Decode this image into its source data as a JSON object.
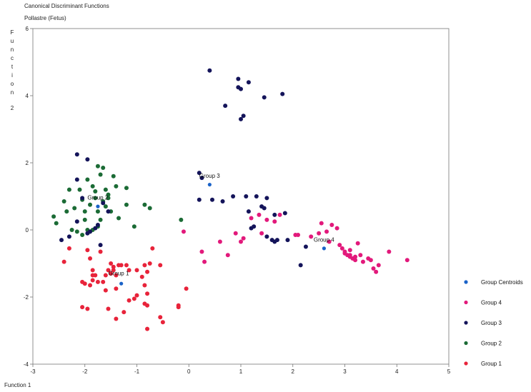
{
  "chart_data": {
    "type": "scatter",
    "title": "Canonical Discriminant Functions",
    "subtitle": "Pollastre (Fetus)",
    "xlabel": "Function 1",
    "ylabel_letters": [
      "F",
      "u",
      "n",
      "c",
      "t",
      "i",
      "o",
      "n"
    ],
    "ylabel_number": "2",
    "xlim": [
      -3,
      5
    ],
    "ylim": [
      -4,
      6
    ],
    "xticks": [
      -3,
      -2,
      -1,
      0,
      1,
      2,
      3,
      4,
      5
    ],
    "yticks": [
      -4,
      -2,
      0,
      2,
      4,
      6
    ],
    "grid": false,
    "legend_position": "right",
    "annotations": [
      {
        "text": "Group 1",
        "x": -1.55,
        "y": -1.35
      },
      {
        "text": "Group 2",
        "x": -1.95,
        "y": 0.9
      },
      {
        "text": "Group 3",
        "x": 0.2,
        "y": 1.55
      },
      {
        "text": "Group 4",
        "x": 2.4,
        "y": -0.35
      }
    ],
    "series": [
      {
        "name": "Group 1",
        "color": "#e8233a",
        "points": [
          [
            -2.4,
            -0.95
          ],
          [
            -1.95,
            -0.6
          ],
          [
            -1.7,
            -0.65
          ],
          [
            -2.3,
            -0.55
          ],
          [
            -1.9,
            -0.85
          ],
          [
            -1.85,
            -1.2
          ],
          [
            -1.85,
            -1.35
          ],
          [
            -1.8,
            -1.35
          ],
          [
            -1.85,
            -1.5
          ],
          [
            -1.9,
            -1.65
          ],
          [
            -1.75,
            -1.55
          ],
          [
            -2.0,
            -1.6
          ],
          [
            -2.05,
            -1.55
          ],
          [
            -1.5,
            -1.0
          ],
          [
            -1.45,
            -1.1
          ],
          [
            -1.35,
            -1.05
          ],
          [
            -1.3,
            -1.05
          ],
          [
            -1.4,
            -1.35
          ],
          [
            -1.55,
            -1.2
          ],
          [
            -1.5,
            -1.3
          ],
          [
            -1.45,
            -1.2
          ],
          [
            -1.6,
            -1.35
          ],
          [
            -1.65,
            -1.55
          ],
          [
            -1.6,
            -1.8
          ],
          [
            -1.4,
            -1.75
          ],
          [
            -1.2,
            -1.05
          ],
          [
            -1.15,
            -1.2
          ],
          [
            -1.0,
            -1.2
          ],
          [
            -0.85,
            -1.05
          ],
          [
            -0.8,
            -1.25
          ],
          [
            -0.75,
            -1.0
          ],
          [
            -0.7,
            -0.55
          ],
          [
            -0.55,
            -1.05
          ],
          [
            -0.9,
            -1.4
          ],
          [
            -0.85,
            -1.65
          ],
          [
            -0.8,
            -1.9
          ],
          [
            -1.0,
            -1.95
          ],
          [
            -1.05,
            -2.05
          ],
          [
            -1.15,
            -2.1
          ],
          [
            -1.25,
            -2.45
          ],
          [
            -1.4,
            -2.65
          ],
          [
            -2.05,
            -2.3
          ],
          [
            -1.95,
            -2.35
          ],
          [
            -1.55,
            -2.35
          ],
          [
            -0.85,
            -2.2
          ],
          [
            -0.8,
            -2.25
          ],
          [
            -0.55,
            -2.6
          ],
          [
            -0.5,
            -2.75
          ],
          [
            -0.8,
            -2.95
          ],
          [
            -0.2,
            -2.25
          ],
          [
            -0.2,
            -2.3
          ],
          [
            -0.05,
            -1.75
          ]
        ]
      },
      {
        "name": "Group 2",
        "color": "#1b6b35",
        "points": [
          [
            -2.6,
            0.4
          ],
          [
            -2.55,
            0.2
          ],
          [
            -2.4,
            0.85
          ],
          [
            -2.35,
            0.55
          ],
          [
            -2.3,
            1.2
          ],
          [
            -2.25,
            0.0
          ],
          [
            -2.15,
            -0.05
          ],
          [
            -2.2,
            0.65
          ],
          [
            -2.1,
            1.2
          ],
          [
            -2.05,
            0.9
          ],
          [
            -2.0,
            0.55
          ],
          [
            -2.0,
            0.3
          ],
          [
            -1.95,
            0.0
          ],
          [
            -1.9,
            -0.05
          ],
          [
            -1.85,
            0.0
          ],
          [
            -1.9,
            0.75
          ],
          [
            -1.95,
            1.5
          ],
          [
            -1.85,
            1.3
          ],
          [
            -1.8,
            0.95
          ],
          [
            -1.75,
            0.55
          ],
          [
            -1.75,
            1.9
          ],
          [
            -1.7,
            1.65
          ],
          [
            -1.65,
            1.85
          ],
          [
            -1.6,
            1.2
          ],
          [
            -1.55,
            0.95
          ],
          [
            -1.55,
            1.05
          ],
          [
            -1.5,
            0.55
          ],
          [
            -1.45,
            1.6
          ],
          [
            -1.4,
            1.3
          ],
          [
            -1.35,
            0.35
          ],
          [
            -1.2,
            1.25
          ],
          [
            -1.2,
            0.75
          ],
          [
            -1.05,
            0.1
          ],
          [
            -0.85,
            0.75
          ],
          [
            -0.75,
            0.65
          ],
          [
            -0.15,
            0.3
          ],
          [
            -1.75,
            0.1
          ],
          [
            -1.7,
            0.3
          ],
          [
            -1.65,
            0.85
          ],
          [
            -1.8,
            1.15
          ],
          [
            -1.6,
            0.7
          ],
          [
            -2.05,
            -0.15
          ]
        ]
      },
      {
        "name": "Group 3",
        "color": "#14145a",
        "points": [
          [
            -2.15,
            2.25
          ],
          [
            -1.95,
            2.1
          ],
          [
            -2.15,
            1.5
          ],
          [
            -2.05,
            0.95
          ],
          [
            -2.45,
            -0.3
          ],
          [
            -2.3,
            -0.2
          ],
          [
            -2.15,
            0.25
          ],
          [
            -1.95,
            -0.1
          ],
          [
            -1.9,
            -0.05
          ],
          [
            -1.75,
            0.15
          ],
          [
            -1.7,
            -0.45
          ],
          [
            -1.55,
            0.55
          ],
          [
            -1.65,
            0.8
          ],
          [
            -1.8,
            0.05
          ],
          [
            0.4,
            4.75
          ],
          [
            0.95,
            4.5
          ],
          [
            1.15,
            4.4
          ],
          [
            0.95,
            4.25
          ],
          [
            1.0,
            4.2
          ],
          [
            1.45,
            3.95
          ],
          [
            1.8,
            4.05
          ],
          [
            0.7,
            3.7
          ],
          [
            1.05,
            3.4
          ],
          [
            1.0,
            3.3
          ],
          [
            0.2,
            1.7
          ],
          [
            0.25,
            1.55
          ],
          [
            0.2,
            0.9
          ],
          [
            0.45,
            0.9
          ],
          [
            0.65,
            0.85
          ],
          [
            0.85,
            1.0
          ],
          [
            1.1,
            1.0
          ],
          [
            1.15,
            0.55
          ],
          [
            1.4,
            0.7
          ],
          [
            1.45,
            0.65
          ],
          [
            1.5,
            0.95
          ],
          [
            1.65,
            0.45
          ],
          [
            1.3,
            1.0
          ],
          [
            1.2,
            0.05
          ],
          [
            1.25,
            0.1
          ],
          [
            1.5,
            -0.2
          ],
          [
            1.6,
            -0.3
          ],
          [
            1.65,
            -0.35
          ],
          [
            1.85,
            0.5
          ],
          [
            1.9,
            -0.3
          ],
          [
            2.25,
            -0.5
          ],
          [
            2.15,
            -1.05
          ],
          [
            1.7,
            -0.3
          ]
        ]
      },
      {
        "name": "Group 4",
        "color": "#e2197b",
        "points": [
          [
            -0.1,
            -0.05
          ],
          [
            0.25,
            -0.65
          ],
          [
            0.3,
            -0.95
          ],
          [
            0.6,
            -0.35
          ],
          [
            0.75,
            -0.75
          ],
          [
            1.0,
            -0.35
          ],
          [
            1.05,
            -0.25
          ],
          [
            1.2,
            0.35
          ],
          [
            1.35,
            0.45
          ],
          [
            1.5,
            0.3
          ],
          [
            1.65,
            0.25
          ],
          [
            1.75,
            0.45
          ],
          [
            2.05,
            -0.15
          ],
          [
            2.1,
            -0.15
          ],
          [
            2.55,
            0.2
          ],
          [
            2.65,
            -0.05
          ],
          [
            2.7,
            -0.35
          ],
          [
            2.75,
            0.15
          ],
          [
            2.85,
            0.05
          ],
          [
            2.95,
            -0.55
          ],
          [
            3.0,
            -0.7
          ],
          [
            3.05,
            -0.75
          ],
          [
            3.1,
            -0.6
          ],
          [
            3.1,
            -0.8
          ],
          [
            3.15,
            -0.85
          ],
          [
            3.2,
            -0.9
          ],
          [
            3.25,
            -0.4
          ],
          [
            3.3,
            -0.75
          ],
          [
            3.35,
            -0.95
          ],
          [
            3.45,
            -0.85
          ],
          [
            3.5,
            -0.9
          ],
          [
            3.55,
            -1.15
          ],
          [
            3.6,
            -1.25
          ],
          [
            3.65,
            -1.05
          ],
          [
            3.85,
            -0.65
          ],
          [
            4.2,
            -0.9
          ],
          [
            2.5,
            -0.1
          ],
          [
            2.35,
            -0.2
          ],
          [
            3.0,
            -0.65
          ],
          [
            3.1,
            -0.75
          ],
          [
            3.2,
            -0.8
          ],
          [
            2.9,
            -0.45
          ],
          [
            0.9,
            -0.1
          ],
          [
            1.4,
            -0.1
          ]
        ]
      }
    ],
    "centroids": {
      "name": "Group Centroids",
      "color": "#1a63c8",
      "points": [
        [
          -1.3,
          -1.6
        ],
        [
          -1.75,
          0.7
        ],
        [
          0.4,
          1.35
        ],
        [
          2.6,
          -0.55
        ]
      ]
    },
    "legend": [
      {
        "label": "Group Centroids",
        "color": "#1a63c8"
      },
      {
        "label": "Group 4",
        "color": "#e2197b"
      },
      {
        "label": "Group 3",
        "color": "#14145a"
      },
      {
        "label": "Group 2",
        "color": "#1b6b35"
      },
      {
        "label": "Group 1",
        "color": "#e8233a"
      }
    ]
  }
}
